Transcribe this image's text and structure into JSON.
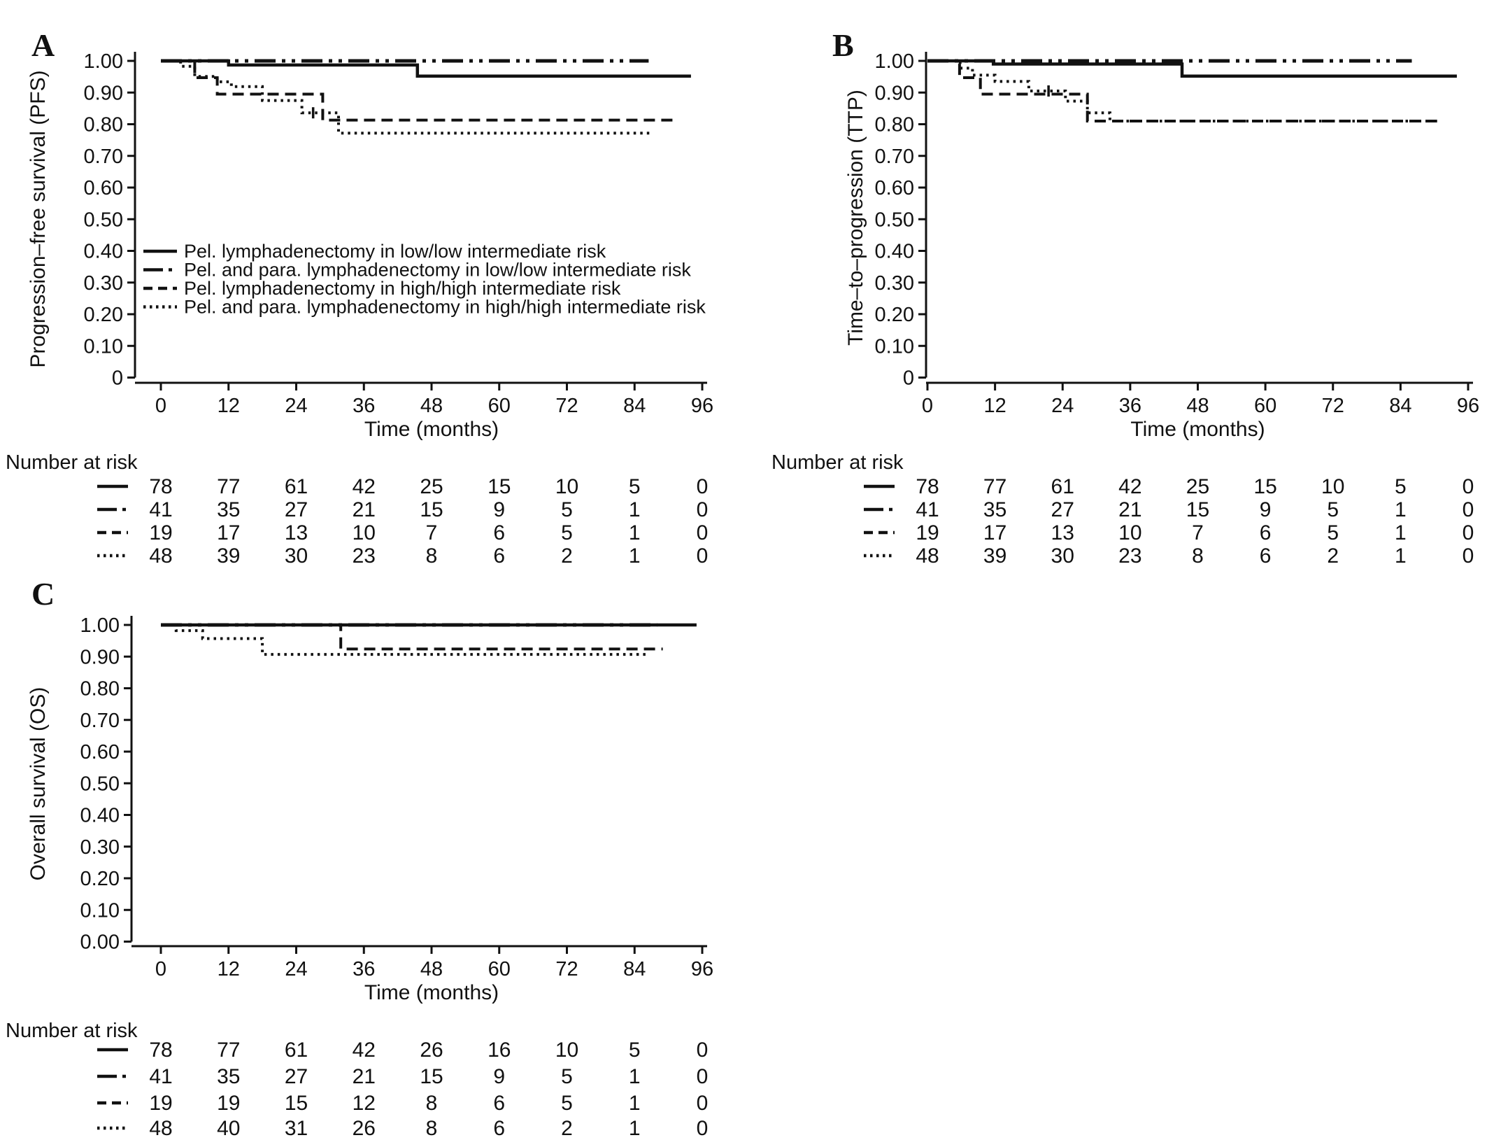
{
  "figure": {
    "background": "#ffffff",
    "line_color": "#111111",
    "number_at_risk_label": "Number at risk"
  },
  "chart_data": [
    {
      "id": "A",
      "panel_label": "A",
      "type": "line",
      "subtype": "kaplan-meier-step",
      "xlabel": "Time (months)",
      "ylabel": "Progression–free survival (PFS)",
      "xlim": [
        0,
        96
      ],
      "ylim": [
        0,
        1
      ],
      "xticks": [
        "0",
        "12",
        "24",
        "36",
        "48",
        "60",
        "72",
        "84",
        "96"
      ],
      "ytick_labels": [
        "1.00",
        "0.90",
        "0.80",
        "0.70",
        "0.60",
        "0.50",
        "0.40",
        "0.30",
        "0.20",
        "0.10",
        "0"
      ],
      "grid": false,
      "legend_position": "inside-lower-left",
      "series": [
        {
          "name": "Pel. lymphadenectomy in low/low intermediate risk",
          "style": "solid",
          "steps": [
            [
              0,
              1
            ],
            [
              12,
              0.987
            ],
            [
              45.5,
              0.952
            ],
            [
              94,
              0.952
            ]
          ]
        },
        {
          "name": "Pel. and para. lymphadenectomy in low/low intermediate risk",
          "style": "dash-dot-dot",
          "steps": [
            [
              0,
              1
            ],
            [
              86.5,
              1
            ]
          ]
        },
        {
          "name": "Pel. lymphadenectomy in high/high intermediate risk",
          "style": "dashed",
          "steps": [
            [
              0,
              1
            ],
            [
              6,
              0.947
            ],
            [
              10,
              0.895
            ],
            [
              28.7,
              0.813
            ],
            [
              91,
              0.813
            ]
          ]
        },
        {
          "name": "Pel. and para. lymphadenectomy in high/high intermediate risk",
          "style": "dotted",
          "steps": [
            [
              0,
              1
            ],
            [
              3.5,
              0.983
            ],
            [
              6,
              0.951
            ],
            [
              10,
              0.934
            ],
            [
              12.5,
              0.919
            ],
            [
              18,
              0.875
            ],
            [
              25,
              0.836
            ],
            [
              31.5,
              0.772
            ],
            [
              87,
              0.772
            ]
          ]
        }
      ],
      "censor_marks": [
        {
          "series": 3,
          "t": 27,
          "v": 0.836
        }
      ],
      "show_legend": true,
      "number_at_risk": {
        "label": "Number at risk",
        "times": [
          0,
          12,
          24,
          36,
          48,
          60,
          72,
          84,
          96
        ],
        "rows": [
          {
            "style": "solid",
            "values": [
              78,
              77,
              61,
              42,
              25,
              15,
              10,
              5,
              0
            ]
          },
          {
            "style": "dash-dot-dot",
            "values": [
              41,
              35,
              27,
              21,
              15,
              9,
              5,
              1,
              0
            ]
          },
          {
            "style": "dashed",
            "values": [
              19,
              17,
              13,
              10,
              7,
              6,
              5,
              1,
              0
            ]
          },
          {
            "style": "dotted",
            "values": [
              48,
              39,
              30,
              23,
              8,
              6,
              2,
              1,
              0
            ]
          }
        ]
      }
    },
    {
      "id": "B",
      "panel_label": "B",
      "type": "line",
      "subtype": "kaplan-meier-step",
      "xlabel": "Time (months)",
      "ylabel": "Time–to–progression (TTP)",
      "xlim": [
        0,
        96
      ],
      "ylim": [
        0,
        1
      ],
      "xticks": [
        "0",
        "12",
        "24",
        "36",
        "48",
        "60",
        "72",
        "84",
        "96"
      ],
      "ytick_labels": [
        "1.00",
        "0.90",
        "0.80",
        "0.70",
        "0.60",
        "0.50",
        "0.40",
        "0.30",
        "0.20",
        "0.10",
        "0"
      ],
      "grid": false,
      "series": [
        {
          "name": "Pel. lymphadenectomy in low/low intermediate risk",
          "style": "solid",
          "steps": [
            [
              0,
              1
            ],
            [
              11.7,
              0.99
            ],
            [
              45.2,
              0.952
            ],
            [
              94,
              0.952
            ]
          ]
        },
        {
          "name": "Pel. and para. lymphadenectomy in low/low intermediate risk",
          "style": "dash-dot-dot",
          "steps": [
            [
              0,
              1
            ],
            [
              86,
              1
            ]
          ]
        },
        {
          "name": "Pel. lymphadenectomy in high/high intermediate risk",
          "style": "dashed",
          "steps": [
            [
              0,
              1
            ],
            [
              5.7,
              0.947
            ],
            [
              9.4,
              0.895
            ],
            [
              28.4,
              0.81
            ],
            [
              90.5,
              0.81
            ]
          ]
        },
        {
          "name": "Pel. and para. lymphadenectomy in high/high intermediate risk",
          "style": "dotted",
          "steps": [
            [
              0,
              1
            ],
            [
              5.8,
              0.977
            ],
            [
              8,
              0.955
            ],
            [
              12,
              0.935
            ],
            [
              18,
              0.905
            ],
            [
              24.5,
              0.873
            ],
            [
              28.4,
              0.836
            ],
            [
              32.4,
              0.81
            ],
            [
              90,
              0.81
            ]
          ]
        }
      ],
      "censor_marks": [
        {
          "series": 3,
          "t": 21.5,
          "v": 0.905
        }
      ],
      "show_legend": false,
      "number_at_risk": {
        "label": "Number at risk",
        "times": [
          0,
          12,
          24,
          36,
          48,
          60,
          72,
          84,
          96
        ],
        "rows": [
          {
            "style": "solid",
            "values": [
              78,
              77,
              61,
              42,
              25,
              15,
              10,
              5,
              0
            ]
          },
          {
            "style": "dash-dot-dot",
            "values": [
              41,
              35,
              27,
              21,
              15,
              9,
              5,
              1,
              0
            ]
          },
          {
            "style": "dashed",
            "values": [
              19,
              17,
              13,
              10,
              7,
              6,
              5,
              1,
              0
            ]
          },
          {
            "style": "dotted",
            "values": [
              48,
              39,
              30,
              23,
              8,
              6,
              2,
              1,
              0
            ]
          }
        ]
      }
    },
    {
      "id": "C",
      "panel_label": "C",
      "type": "line",
      "subtype": "kaplan-meier-step",
      "xlabel": "Time (months)",
      "ylabel": "Overall survival (OS)",
      "xlim": [
        0,
        96
      ],
      "ylim": [
        0,
        1
      ],
      "xticks": [
        "0",
        "12",
        "24",
        "36",
        "48",
        "60",
        "72",
        "84",
        "96"
      ],
      "ytick_labels": [
        "1.00",
        "0.90",
        "0.80",
        "0.70",
        "0.60",
        "0.50",
        "0.40",
        "0.30",
        "0.20",
        "0.10",
        "0.00"
      ],
      "grid": false,
      "series": [
        {
          "name": "Pel. lymphadenectomy in low/low intermediate risk",
          "style": "solid",
          "steps": [
            [
              0,
              1
            ],
            [
              95,
              1
            ]
          ]
        },
        {
          "name": "Pel. and para. lymphadenectomy in low/low intermediate risk",
          "style": "dash-dot-dot",
          "steps": [
            [
              0,
              1
            ],
            [
              88,
              1
            ]
          ]
        },
        {
          "name": "Pel. lymphadenectomy in high/high intermediate risk",
          "style": "dashed",
          "steps": [
            [
              0,
              1
            ],
            [
              31.9,
              0.924
            ],
            [
              89,
              0.924
            ]
          ]
        },
        {
          "name": "Pel. and para. lymphadenectomy in high/high intermediate risk",
          "style": "dotted",
          "steps": [
            [
              0,
              1
            ],
            [
              2.7,
              0.982
            ],
            [
              7.4,
              0.957
            ],
            [
              18,
              0.907
            ],
            [
              86,
              0.907
            ]
          ]
        }
      ],
      "censor_marks": [],
      "show_legend": false,
      "number_at_risk": {
        "label": "Number at risk",
        "times": [
          0,
          12,
          24,
          36,
          48,
          60,
          72,
          84,
          96
        ],
        "rows": [
          {
            "style": "solid",
            "values": [
              78,
              77,
              61,
              42,
              26,
              16,
              10,
              5,
              0
            ]
          },
          {
            "style": "dash-dot-dot",
            "values": [
              41,
              35,
              27,
              21,
              15,
              9,
              5,
              1,
              0
            ]
          },
          {
            "style": "dashed",
            "values": [
              19,
              19,
              15,
              12,
              8,
              6,
              5,
              1,
              0
            ]
          },
          {
            "style": "dotted",
            "values": [
              48,
              40,
              31,
              26,
              8,
              6,
              2,
              1,
              0
            ]
          }
        ]
      }
    }
  ]
}
